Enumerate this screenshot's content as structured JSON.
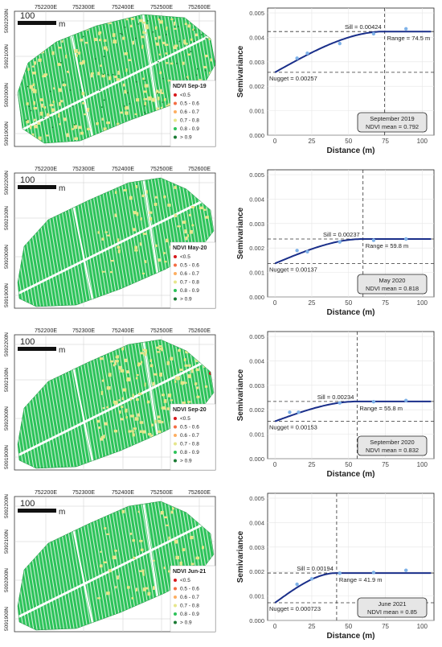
{
  "map_panels": [
    {
      "legend_title": "NDVI Sep-19",
      "x_ticks": [
        "752200E",
        "752300E",
        "752400E",
        "752500E",
        "752600E"
      ],
      "y_ticks": [
        "5092200N",
        "5092100N",
        "5092000N",
        "5091900N"
      ],
      "scale_label": "100",
      "scale_unit": "m",
      "dominant_classes": [
        "0.8 - 0.9",
        "0.7 - 0.8",
        "0.6 - 0.7",
        "> 0.9"
      ]
    },
    {
      "legend_title": "NDVI May-20",
      "x_ticks": [
        "752200E",
        "752300E",
        "752400E",
        "752500E",
        "752600E"
      ],
      "y_ticks": [
        "5092200N",
        "5092100N",
        "5092000N",
        "5091900N"
      ],
      "scale_label": "100",
      "scale_unit": "m",
      "dominant_classes": [
        "0.8 - 0.9",
        "0.7 - 0.8"
      ]
    },
    {
      "legend_title": "NDVI Sep-20",
      "x_ticks": [
        "752200E",
        "752300E",
        "752400E",
        "752500E",
        "752600E"
      ],
      "y_ticks": [
        "5092200N",
        "5092100N",
        "5092000N",
        "5091900N"
      ],
      "scale_label": "100",
      "scale_unit": "m",
      "dominant_classes": [
        "0.8 - 0.9",
        "0.7 - 0.8",
        "<0.5"
      ]
    },
    {
      "legend_title": "NDVI Jun-21",
      "x_ticks": [
        "752200E",
        "752300E",
        "752400E",
        "752500E",
        "752600E"
      ],
      "y_ticks": [
        "5092200N",
        "5092100N",
        "5092000N",
        "5091900N"
      ],
      "scale_label": "100",
      "scale_unit": "m",
      "dominant_classes": [
        "0.8 - 0.9",
        "0.7 - 0.8"
      ]
    }
  ],
  "legend_classes": [
    {
      "label": "<0.5",
      "color": "#d7191c"
    },
    {
      "label": "0.5 - 0.6",
      "color": "#f46d43"
    },
    {
      "label": "0.6 - 0.7",
      "color": "#fdae61"
    },
    {
      "label": "0.7 - 0.8",
      "color": "#e6e68c"
    },
    {
      "label": "0.8 - 0.9",
      "color": "#2dc35a"
    },
    {
      "label": "> 0.9",
      "color": "#1a7a33"
    }
  ],
  "chart_data": [
    {
      "type": "scatter",
      "xlabel": "Distance (m)",
      "ylabel": "Semivariance",
      "xlim": [
        -5,
        108
      ],
      "ylim": [
        0,
        0.0052
      ],
      "x_ticks": [
        0,
        25,
        50,
        75,
        100
      ],
      "y_ticks": [
        "0.000",
        "0.001",
        "0.002",
        "0.003",
        "0.004",
        "0.005"
      ],
      "points": [
        [
          15,
          0.00315
        ],
        [
          22,
          0.00335
        ],
        [
          44,
          0.00375
        ],
        [
          67,
          0.00415
        ],
        [
          89,
          0.00435
        ]
      ],
      "nugget": 0.00257,
      "sill": 0.00424,
      "range": 74.5,
      "sill_label": "Sill = 0.00424",
      "nugget_label": "Nugget = 0.00257",
      "range_label": "Range = 74.5 m",
      "info_line1": "September 2019",
      "info_line2": "NDVI mean = 0.792",
      "info_corner": "bottom"
    },
    {
      "type": "scatter",
      "xlabel": "Distance (m)",
      "ylabel": "Semivariance",
      "xlim": [
        -5,
        108
      ],
      "ylim": [
        0,
        0.0052
      ],
      "x_ticks": [
        0,
        25,
        50,
        75,
        100
      ],
      "y_ticks": [
        "0.000",
        "0.001",
        "0.002",
        "0.003",
        "0.004",
        "0.005"
      ],
      "points": [
        [
          15,
          0.0019
        ],
        [
          22,
          0.00185
        ],
        [
          44,
          0.00225
        ],
        [
          67,
          0.00232
        ],
        [
          89,
          0.00237
        ]
      ],
      "nugget": 0.00137,
      "sill": 0.00237,
      "range": 59.8,
      "sill_label": "Sill = 0.00237",
      "nugget_label": "Nugget = 0.00137",
      "range_label": "Range = 59.8 m",
      "info_line1": "May 2020",
      "info_line2": "NDVI mean = 0.818",
      "info_corner": "bottom"
    },
    {
      "type": "scatter",
      "xlabel": "Distance (m)",
      "ylabel": "Semivariance",
      "xlim": [
        -5,
        108
      ],
      "ylim": [
        0,
        0.0052
      ],
      "x_ticks": [
        0,
        25,
        50,
        75,
        100
      ],
      "y_ticks": [
        "0.000",
        "0.001",
        "0.002",
        "0.003",
        "0.004",
        "0.005"
      ],
      "points": [
        [
          10,
          0.0019
        ],
        [
          16,
          0.0019
        ],
        [
          44,
          0.00228
        ],
        [
          67,
          0.00233
        ],
        [
          89,
          0.00238
        ]
      ],
      "nugget": 0.00153,
      "sill": 0.00234,
      "range": 55.8,
      "sill_label": "Sill = 0.00234",
      "nugget_label": "Nugget = 0.00153",
      "range_label": "Range = 55.8 m",
      "info_line1": "September 2020",
      "info_line2": "NDVI mean = 0.832",
      "info_corner": "bottom"
    },
    {
      "type": "scatter",
      "xlabel": "Distance (m)",
      "ylabel": "Semivariance",
      "xlim": [
        -5,
        108
      ],
      "ylim": [
        0,
        0.0052
      ],
      "x_ticks": [
        0,
        25,
        50,
        75,
        100
      ],
      "y_ticks": [
        "0.000",
        "0.001",
        "0.002",
        "0.003",
        "0.004",
        "0.005"
      ],
      "points": [
        [
          15,
          0.00148
        ],
        [
          25,
          0.0017
        ],
        [
          44,
          0.00193
        ],
        [
          67,
          0.00196
        ],
        [
          89,
          0.00205
        ]
      ],
      "nugget": 0.000723,
      "sill": 0.00194,
      "range": 41.9,
      "sill_label": "Sill = 0.00194",
      "nugget_label": "Nugget = 0.000723",
      "range_label": "Range = 41.9 m",
      "info_line1": "June 2021",
      "info_line2": "NDVI mean = 0.85",
      "info_corner": "bottom"
    }
  ]
}
